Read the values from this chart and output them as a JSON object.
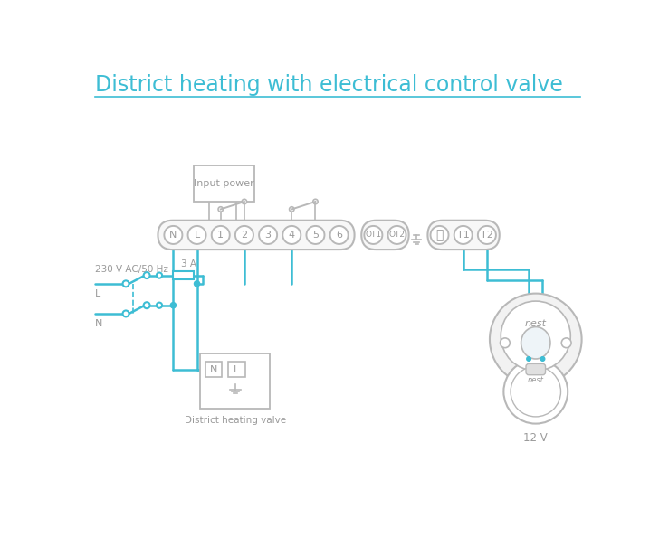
{
  "title": "District heating with electrical control valve",
  "title_color": "#3dbdd4",
  "wire_color": "#3dbdd4",
  "comp_color": "#b8b8b8",
  "text_color": "#9a9a9a",
  "bg_color": "#ffffff",
  "label_230v": "230 V AC/50 Hz",
  "label_L": "L",
  "label_N": "N",
  "label_3A": "3 A",
  "label_input_power": "Input power",
  "label_district": "District heating valve",
  "label_12v": "12 V",
  "label_nest": "nest",
  "main_terminals": [
    "N",
    "L",
    "1",
    "2",
    "3",
    "4",
    "5",
    "6"
  ],
  "ot_terminals": [
    "OT1",
    "OT2"
  ],
  "t_terminals": [
    "⏚",
    "T1",
    "T2"
  ]
}
